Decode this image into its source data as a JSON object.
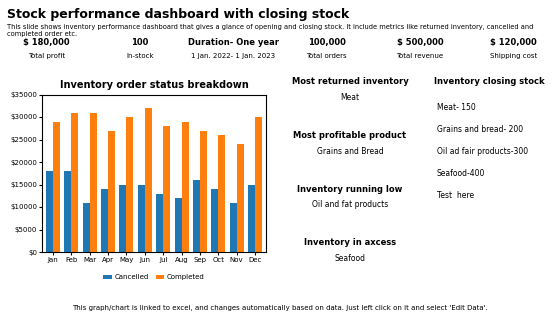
{
  "chart_data": {
    "type": "bar",
    "title": "Inventory order status breakdown",
    "categories": [
      "Jan",
      "Feb",
      "Mar",
      "Apr",
      "May",
      "Jun",
      "Jul",
      "Aug",
      "Sep",
      "Oct",
      "Nov",
      "Dec"
    ],
    "series": [
      {
        "name": "Cancelled",
        "values": [
          18000,
          18000,
          11000,
          14000,
          15000,
          15000,
          13000,
          12000,
          16000,
          14000,
          11000,
          15000
        ]
      },
      {
        "name": "Completed",
        "values": [
          29000,
          31000,
          31000,
          27000,
          30000,
          32000,
          28000,
          29000,
          27000,
          26000,
          24000,
          30000
        ]
      }
    ],
    "ylim": [
      0,
      35000
    ],
    "yticks": [
      {
        "value": 0,
        "label": "$0"
      },
      {
        "value": 5000,
        "label": "$5000"
      },
      {
        "value": 10000,
        "label": "$10000"
      },
      {
        "value": 15000,
        "label": "$15000"
      },
      {
        "value": 20000,
        "label": "$20000"
      },
      {
        "value": 25000,
        "label": "$25000"
      },
      {
        "value": 30000,
        "label": "$30000"
      },
      {
        "value": 35000,
        "label": "$35000"
      }
    ],
    "legend": "lower center",
    "annotations": [
      [
        "Stock performance dashboard with closing stock",
        "This slide shows inventory performance dashboard that gives a glance of opening and closing stock. It include metrics like returned inventory, cancelled and completed order etc."
      ],
      [
        [
          "$ 180,000",
          "Total profit"
        ],
        [
          "100",
          "In-stock"
        ],
        [
          "Duration- One year",
          "1 Jan. 2022- 1 Jan. 2023"
        ],
        [
          "100,000",
          "Total orders"
        ],
        [
          "$ 500,000",
          "Total revenue"
        ],
        [
          "$ 120,000",
          "Shipping cost"
        ]
      ],
      [
        [
          "Most returned inventory",
          "Meat"
        ],
        [
          "Most profitable product",
          "Grains and Bread"
        ],
        [
          "Inventory running low",
          "Oil and fat products"
        ],
        [
          "Inventory in axcess",
          "Seafood"
        ]
      ],
      [
        "Inventory closing stock",
        "Meat- 150",
        "Grains and bread- 200",
        "Oil ad fair products-300",
        "Seafood-400",
        "Test  here"
      ],
      [
        "This graph/chart is linked to excel, and changes automatically based on data. Just left click on it and select 'Edit Data'."
      ]
    ]
  }
}
